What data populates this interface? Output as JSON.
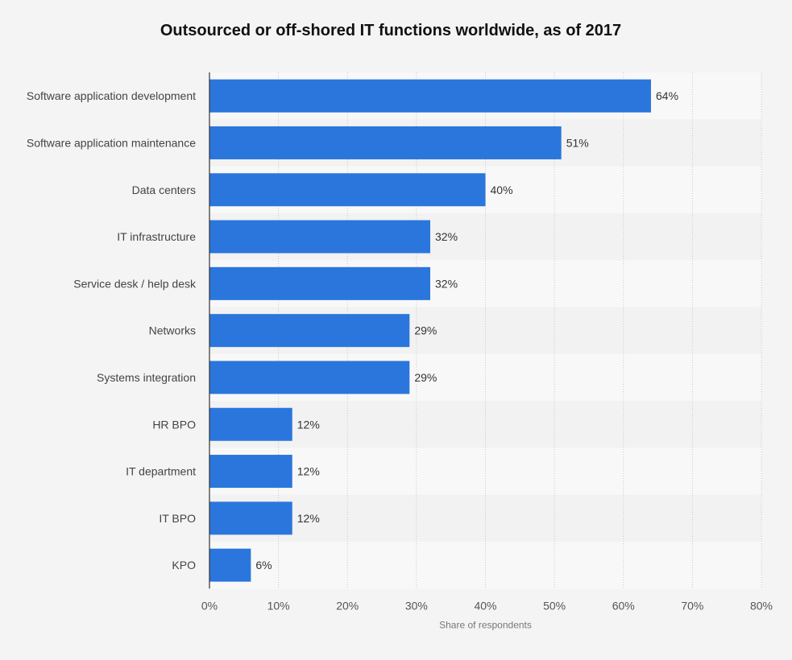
{
  "chart_data": {
    "type": "bar",
    "orientation": "horizontal",
    "title": "Outsourced or off-shored IT functions worldwide, as of 2017",
    "xlabel": "Share of respondents",
    "ylabel": "",
    "xlim": [
      0,
      80
    ],
    "ticks": [
      "0%",
      "10%",
      "20%",
      "30%",
      "40%",
      "50%",
      "60%",
      "70%",
      "80%"
    ],
    "categories": [
      "Software application development",
      "Software application maintenance",
      "Data centers",
      "IT infrastructure",
      "Service desk / help desk",
      "Networks",
      "Systems integration",
      "HR BPO",
      "IT department",
      "IT BPO",
      "KPO"
    ],
    "values": [
      64,
      51,
      40,
      32,
      32,
      29,
      29,
      12,
      12,
      12,
      6
    ],
    "value_labels": [
      "64%",
      "51%",
      "40%",
      "32%",
      "32%",
      "29%",
      "29%",
      "12%",
      "12%",
      "12%",
      "6%"
    ],
    "bar_color": "#2a76dd",
    "grid": true
  }
}
